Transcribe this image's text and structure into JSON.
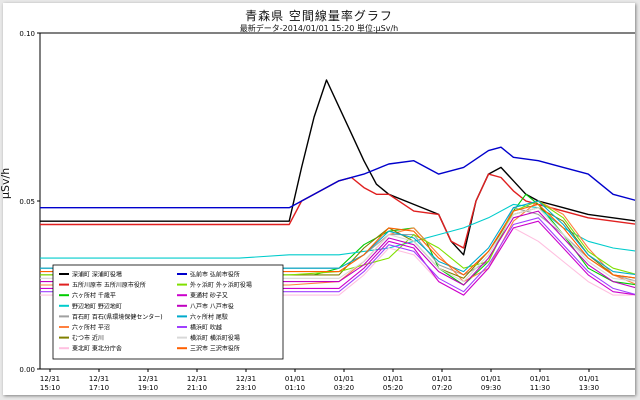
{
  "chart_data": {
    "type": "line",
    "title": "青森県 空間線量率グラフ",
    "subtitle": "最新データ-2014/01/01 15:20 単位:μSv/h",
    "xlabel": "",
    "ylabel": "μSv/h",
    "ylim": [
      0,
      0.1
    ],
    "yticks": [
      "0.00",
      "0.05",
      "0.10"
    ],
    "grid": false,
    "legend_position": "lower-left",
    "x_tick_labels": [
      [
        "12/31",
        "15:10"
      ],
      [
        "12/31",
        "17:10"
      ],
      [
        "12/31",
        "19:10"
      ],
      [
        "12/31",
        "21:10"
      ],
      [
        "12/31",
        "23:10"
      ],
      [
        "01/01",
        "01:10"
      ],
      [
        "01/01",
        "03:20"
      ],
      [
        "01/01",
        "05:20"
      ],
      [
        "01/01",
        "07:20"
      ],
      [
        "01/01",
        "09:30"
      ],
      [
        "01/01",
        "11:30"
      ],
      [
        "01/01",
        "13:30"
      ]
    ],
    "x_range": [
      0,
      24
    ],
    "series": [
      {
        "name": "深浦町 深浦町役場",
        "color": "#000000",
        "x": [
          0,
          4,
          8,
          10,
          10.5,
          11,
          11.5,
          12,
          12.5,
          13,
          13.5,
          14,
          15,
          16,
          16.5,
          17,
          17.5,
          18,
          18.5,
          19,
          19.5,
          20,
          21,
          22,
          24
        ],
        "y": [
          0.044,
          0.044,
          0.044,
          0.044,
          0.06,
          0.075,
          0.086,
          0.078,
          0.07,
          0.062,
          0.055,
          0.052,
          0.049,
          0.046,
          0.038,
          0.034,
          0.05,
          0.058,
          0.06,
          0.056,
          0.052,
          0.05,
          0.048,
          0.046,
          0.044
        ]
      },
      {
        "name": "五所川原市 五所川原市役所",
        "color": "#e02020",
        "x": [
          0,
          4,
          8,
          10,
          10.5,
          11,
          12,
          12.5,
          13,
          13.5,
          14,
          15,
          16,
          16.5,
          17,
          17.5,
          18,
          18.5,
          19,
          19.5,
          20,
          21,
          22,
          24
        ],
        "y": [
          0.043,
          0.043,
          0.043,
          0.043,
          0.05,
          0.052,
          0.056,
          0.057,
          0.054,
          0.052,
          0.052,
          0.047,
          0.046,
          0.038,
          0.036,
          0.05,
          0.058,
          0.057,
          0.053,
          0.05,
          0.049,
          0.047,
          0.045,
          0.043
        ]
      },
      {
        "name": "六ヶ所村 千歳平",
        "color": "#00cc00",
        "x": [
          0,
          4,
          8,
          10,
          11,
          12,
          13,
          14,
          15,
          15.5,
          16,
          17,
          18,
          19,
          19.5,
          20,
          21,
          22,
          23,
          24
        ],
        "y": [
          0.028,
          0.028,
          0.028,
          0.028,
          0.028,
          0.03,
          0.037,
          0.041,
          0.042,
          0.038,
          0.03,
          0.025,
          0.032,
          0.047,
          0.052,
          0.049,
          0.04,
          0.03,
          0.026,
          0.025
        ]
      },
      {
        "name": "野辺地町 野辺地町",
        "color": "#00cccc",
        "x": [
          0,
          4,
          8,
          10,
          12,
          14,
          15,
          16,
          17,
          18,
          19,
          20,
          21,
          22,
          23,
          24
        ],
        "y": [
          0.033,
          0.033,
          0.033,
          0.034,
          0.034,
          0.036,
          0.038,
          0.04,
          0.042,
          0.045,
          0.049,
          0.048,
          0.042,
          0.038,
          0.036,
          0.035
        ]
      },
      {
        "name": "百石町 百石(県環境保健センター)",
        "color": "#a0a0a0",
        "x": [
          0,
          4,
          8,
          10,
          12,
          13,
          14,
          15,
          16,
          17,
          18,
          19,
          20,
          21,
          22,
          23,
          24
        ],
        "y": [
          0.03,
          0.03,
          0.03,
          0.03,
          0.03,
          0.034,
          0.04,
          0.04,
          0.031,
          0.028,
          0.032,
          0.048,
          0.046,
          0.04,
          0.033,
          0.028,
          0.026
        ]
      },
      {
        "name": "六ヶ所村 平沼",
        "color": "#ff8040",
        "x": [
          0,
          4,
          8,
          10,
          12,
          13,
          14,
          15,
          16,
          17,
          18,
          19,
          20,
          21,
          22,
          23,
          24
        ],
        "y": [
          0.025,
          0.025,
          0.025,
          0.025,
          0.026,
          0.032,
          0.04,
          0.042,
          0.034,
          0.026,
          0.03,
          0.044,
          0.05,
          0.046,
          0.036,
          0.028,
          0.025
        ]
      },
      {
        "name": "むつ市 近川",
        "color": "#808000",
        "x": [
          0,
          4,
          8,
          10,
          12,
          13,
          14,
          15,
          16,
          17,
          18,
          19,
          20,
          21,
          22,
          23,
          24
        ],
        "y": [
          0.028,
          0.028,
          0.028,
          0.028,
          0.028,
          0.036,
          0.042,
          0.038,
          0.03,
          0.027,
          0.035,
          0.046,
          0.048,
          0.044,
          0.034,
          0.028,
          0.027
        ]
      },
      {
        "name": "東北町 東北分庁舎",
        "color": "#ffc0e0",
        "x": [
          0,
          4,
          8,
          10,
          12,
          13,
          14,
          15,
          16,
          17,
          18,
          19,
          20,
          21,
          22,
          23,
          24
        ],
        "y": [
          0.022,
          0.022,
          0.022,
          0.022,
          0.022,
          0.028,
          0.036,
          0.034,
          0.026,
          0.022,
          0.03,
          0.042,
          0.038,
          0.032,
          0.026,
          0.022,
          0.022
        ]
      },
      {
        "name": "弘前市 弘前市役所",
        "color": "#0000cc",
        "x": [
          0,
          4,
          8,
          10,
          11,
          12,
          13,
          14,
          15,
          16,
          17,
          18,
          18.5,
          19,
          20,
          21,
          22,
          23,
          24
        ],
        "y": [
          0.048,
          0.048,
          0.048,
          0.048,
          0.052,
          0.056,
          0.058,
          0.061,
          0.062,
          0.058,
          0.06,
          0.065,
          0.066,
          0.063,
          0.062,
          0.06,
          0.058,
          0.052,
          0.05
        ]
      },
      {
        "name": "外ヶ浜町 外ヶ浜町役場",
        "color": "#80e000",
        "x": [
          0,
          4,
          8,
          10,
          12,
          14,
          15,
          16,
          17,
          18,
          19,
          20,
          21,
          22,
          23,
          24
        ],
        "y": [
          0.028,
          0.028,
          0.028,
          0.028,
          0.029,
          0.033,
          0.04,
          0.036,
          0.03,
          0.032,
          0.047,
          0.05,
          0.045,
          0.035,
          0.03,
          0.028
        ]
      },
      {
        "name": "東通村 砂子又",
        "color": "#cc00cc",
        "x": [
          0,
          4,
          8,
          10,
          12,
          13,
          14,
          15,
          16,
          17,
          18,
          19,
          20,
          21,
          22,
          23,
          24
        ],
        "y": [
          0.024,
          0.024,
          0.024,
          0.024,
          0.024,
          0.03,
          0.038,
          0.036,
          0.026,
          0.022,
          0.03,
          0.042,
          0.044,
          0.036,
          0.028,
          0.023,
          0.022
        ]
      },
      {
        "name": "八戸市 八戸市役",
        "color": "#c000c0",
        "x": [
          0,
          4,
          8,
          10,
          12,
          13,
          14,
          15,
          16,
          17,
          18,
          19,
          20,
          21,
          22,
          23,
          24
        ],
        "y": [
          0.026,
          0.026,
          0.026,
          0.026,
          0.026,
          0.031,
          0.039,
          0.037,
          0.029,
          0.025,
          0.033,
          0.045,
          0.047,
          0.039,
          0.031,
          0.026,
          0.024
        ]
      },
      {
        "name": "六ヶ所村 尾駮",
        "color": "#00aacc",
        "x": [
          0,
          4,
          8,
          10,
          12,
          13,
          14,
          15,
          16,
          17,
          18,
          19,
          20,
          21,
          22,
          23,
          24
        ],
        "y": [
          0.03,
          0.03,
          0.03,
          0.03,
          0.03,
          0.034,
          0.041,
          0.039,
          0.032,
          0.029,
          0.036,
          0.048,
          0.05,
          0.043,
          0.034,
          0.029,
          0.028
        ]
      },
      {
        "name": "横浜町 吹越",
        "color": "#a040ff",
        "x": [
          0,
          4,
          8,
          10,
          12,
          13,
          14,
          15,
          16,
          17,
          18,
          19,
          20,
          21,
          22,
          23,
          24
        ],
        "y": [
          0.023,
          0.023,
          0.023,
          0.023,
          0.023,
          0.029,
          0.037,
          0.035,
          0.027,
          0.023,
          0.031,
          0.043,
          0.045,
          0.037,
          0.029,
          0.024,
          0.022
        ]
      },
      {
        "name": "横浜町 横浜町役場",
        "color": "#d8d8d8",
        "x": [
          0,
          4,
          8,
          10,
          12,
          13,
          14,
          15,
          16,
          17,
          18,
          19,
          20,
          21,
          22,
          23,
          24
        ],
        "y": [
          0.027,
          0.027,
          0.027,
          0.027,
          0.027,
          0.032,
          0.04,
          0.038,
          0.03,
          0.026,
          0.034,
          0.046,
          0.048,
          0.04,
          0.032,
          0.027,
          0.026
        ]
      },
      {
        "name": "三沢市 三沢市役所",
        "color": "#ff6000",
        "x": [
          0,
          4,
          8,
          10,
          12,
          13,
          14,
          15,
          16,
          17,
          18,
          19,
          20,
          21,
          22,
          23,
          24
        ],
        "y": [
          0.029,
          0.029,
          0.029,
          0.029,
          0.029,
          0.034,
          0.042,
          0.041,
          0.033,
          0.028,
          0.035,
          0.047,
          0.049,
          0.042,
          0.033,
          0.028,
          0.027
        ]
      }
    ]
  }
}
